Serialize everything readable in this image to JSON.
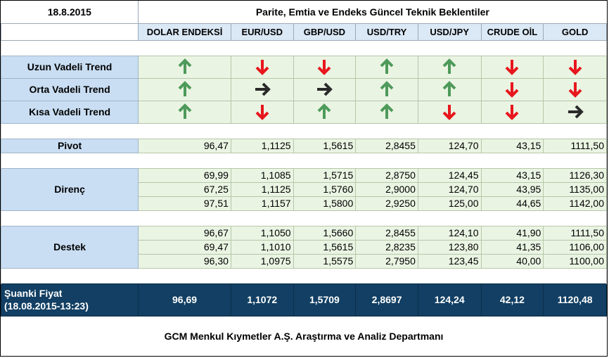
{
  "date": "18.8.2015",
  "title": "Parite, Emtia ve Endeks Güncel Teknik Beklentiler",
  "columns": [
    "DOLAR ENDEKSİ",
    "EUR/USD",
    "GBP/USD",
    "USD/TRY",
    "USD/JPY",
    "CRUDE OİL",
    "GOLD"
  ],
  "trends": [
    {
      "label": "Uzun Vadeli Trend",
      "dirs": [
        "up",
        "down",
        "down",
        "up",
        "up",
        "down",
        "down"
      ]
    },
    {
      "label": "Orta Vadeli Trend",
      "dirs": [
        "up",
        "right",
        "right",
        "up",
        "up",
        "down",
        "down"
      ]
    },
    {
      "label": "Kısa Vadeli Trend",
      "dirs": [
        "up",
        "down",
        "up",
        "up",
        "down",
        "down",
        "right"
      ]
    }
  ],
  "arrow_colors": {
    "up": "#4e9a5a",
    "down": "#e8161d",
    "right": "#2a2a2a"
  },
  "pivot": {
    "label": "Pivot",
    "values": [
      "96,47",
      "1,1125",
      "1,5615",
      "2,8455",
      "124,70",
      "43,15",
      "1111,50"
    ]
  },
  "resistance": {
    "label": "Direnç",
    "rows": [
      [
        "69,99",
        "1,1085",
        "1,5715",
        "2,8750",
        "124,45",
        "43,15",
        "1126,30"
      ],
      [
        "67,25",
        "1,1125",
        "1,5760",
        "2,9000",
        "124,70",
        "43,95",
        "1135,00"
      ],
      [
        "97,51",
        "1,1157",
        "1,5800",
        "2,9250",
        "125,00",
        "44,65",
        "1142,00"
      ]
    ]
  },
  "support": {
    "label": "Destek",
    "rows": [
      [
        "96,67",
        "1,1050",
        "1,5660",
        "2,8455",
        "124,10",
        "41,90",
        "1111,50"
      ],
      [
        "69,47",
        "1,1010",
        "1,5615",
        "2,8235",
        "123,80",
        "41,35",
        "1106,00"
      ],
      [
        "96,30",
        "1,0975",
        "1,5575",
        "2,7950",
        "123,45",
        "40,00",
        "1100,00"
      ]
    ]
  },
  "current_price": {
    "label_line1": "Şuanki Fiyat",
    "label_line2": "(18.08.2015-13:23)",
    "values": [
      "96,69",
      "1,1072",
      "1,5709",
      "2,8697",
      "124,24",
      "42,12",
      "1120,48"
    ]
  },
  "footer": "GCM Menkul Kıymetler A.Ş. Araştırma ve Analiz Departmanı"
}
